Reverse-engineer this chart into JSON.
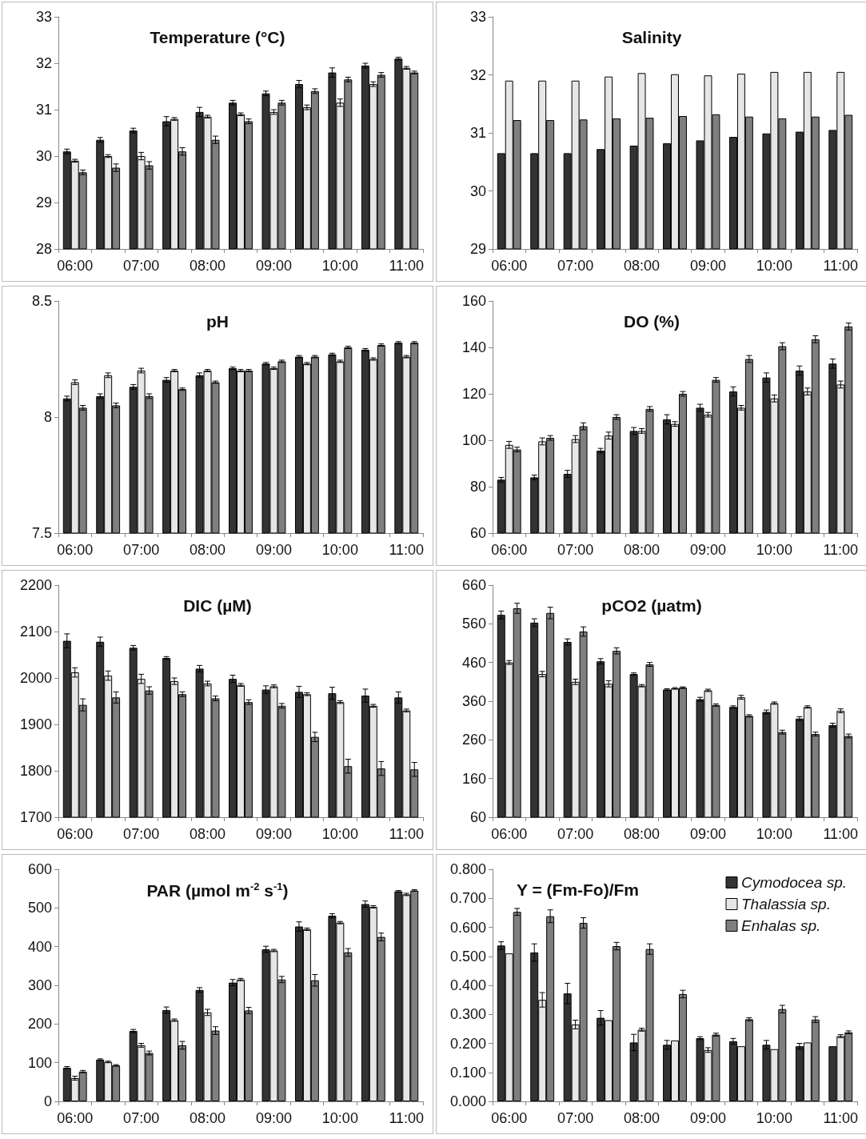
{
  "chart_data": [
    {
      "type": "bar",
      "title": "Temperature (°C)",
      "categories": [
        "06:00",
        null,
        "07:00",
        null,
        "08:00",
        null,
        "09:00",
        null,
        "10:00",
        null,
        "11:00"
      ],
      "ylim": [
        28,
        33
      ],
      "yticks": [
        28,
        29,
        30,
        31,
        32,
        33
      ],
      "series": [
        {
          "color": "#333333",
          "values": [
            30.1,
            30.35,
            30.55,
            30.75,
            30.95,
            31.15,
            31.35,
            31.55,
            31.8,
            31.95,
            32.1
          ],
          "errors": [
            0.05,
            0.05,
            0.05,
            0.1,
            0.1,
            0.05,
            0.05,
            0.08,
            0.1,
            0.05,
            0.03
          ]
        },
        {
          "color": "#e6e6e6",
          "values": [
            29.9,
            30.0,
            30.0,
            30.8,
            30.85,
            30.9,
            30.95,
            31.05,
            31.15,
            31.55,
            31.9
          ],
          "errors": [
            0.03,
            0.03,
            0.08,
            0.03,
            0.03,
            0.03,
            0.05,
            0.05,
            0.08,
            0.05,
            0.03
          ]
        },
        {
          "color": "#7f7f7f",
          "values": [
            29.65,
            29.75,
            29.8,
            30.1,
            30.35,
            30.75,
            31.15,
            31.4,
            31.65,
            31.75,
            31.8
          ],
          "errors": [
            0.05,
            0.08,
            0.08,
            0.08,
            0.08,
            0.05,
            0.05,
            0.05,
            0.05,
            0.05,
            0.03
          ]
        }
      ]
    },
    {
      "type": "bar",
      "title": "Salinity",
      "categories": [
        "06:00",
        null,
        "07:00",
        null,
        "08:00",
        null,
        "09:00",
        null,
        "10:00",
        null,
        "11:00"
      ],
      "ylim": [
        29,
        33
      ],
      "yticks": [
        29,
        30,
        31,
        32,
        33
      ],
      "series": [
        {
          "color": "#333333",
          "values": [
            30.65,
            30.65,
            30.65,
            30.72,
            30.78,
            30.82,
            30.87,
            30.93,
            30.99,
            31.02,
            31.05
          ]
        },
        {
          "color": "#e6e6e6",
          "values": [
            31.9,
            31.9,
            31.9,
            31.97,
            32.03,
            32.01,
            31.99,
            32.02,
            32.05,
            32.05,
            32.05
          ]
        },
        {
          "color": "#7f7f7f",
          "values": [
            31.22,
            31.22,
            31.23,
            31.25,
            31.26,
            31.29,
            31.32,
            31.28,
            31.25,
            31.28,
            31.31
          ]
        }
      ]
    },
    {
      "type": "bar",
      "title": "pH",
      "categories": [
        "06:00",
        null,
        "07:00",
        null,
        "08:00",
        null,
        "09:00",
        null,
        "10:00",
        null,
        "11:00"
      ],
      "ylim": [
        7.5,
        8.5
      ],
      "yticks": [
        7.5,
        8,
        8.5
      ],
      "series": [
        {
          "color": "#333333",
          "values": [
            8.08,
            8.09,
            8.13,
            8.16,
            8.18,
            8.21,
            8.23,
            8.26,
            8.27,
            8.29,
            8.32
          ],
          "errors": [
            0.01,
            0.01,
            0.01,
            0.01,
            0.01,
            0.005,
            0.005,
            0.005,
            0.005,
            0.005,
            0.005
          ]
        },
        {
          "color": "#e6e6e6",
          "values": [
            8.15,
            8.18,
            8.2,
            8.2,
            8.2,
            8.2,
            8.21,
            8.23,
            8.24,
            8.25,
            8.26
          ],
          "errors": [
            0.01,
            0.01,
            0.01,
            0.005,
            0.005,
            0.005,
            0.005,
            0.005,
            0.005,
            0.005,
            0.005
          ]
        },
        {
          "color": "#7f7f7f",
          "values": [
            8.04,
            8.05,
            8.09,
            8.12,
            8.15,
            8.2,
            8.24,
            8.26,
            8.3,
            8.31,
            8.32
          ],
          "errors": [
            0.01,
            0.01,
            0.01,
            0.005,
            0.005,
            0.005,
            0.005,
            0.005,
            0.005,
            0.005,
            0.005
          ]
        }
      ]
    },
    {
      "type": "bar",
      "title": "DO (%)",
      "categories": [
        "06:00",
        null,
        "07:00",
        null,
        "08:00",
        null,
        "09:00",
        null,
        "10:00",
        null,
        "11:00"
      ],
      "ylim": [
        60,
        160
      ],
      "yticks": [
        60,
        80,
        100,
        120,
        140,
        160
      ],
      "series": [
        {
          "color": "#333333",
          "values": [
            83,
            84,
            85.5,
            95.5,
            104,
            109,
            114,
            121,
            127,
            130,
            133
          ],
          "errors": [
            1,
            1,
            1.5,
            1,
            1.5,
            2,
            1.5,
            2,
            2,
            2,
            2
          ]
        },
        {
          "color": "#e6e6e6",
          "values": [
            98,
            99.5,
            100.5,
            102,
            104,
            107,
            111,
            114,
            118,
            121,
            124
          ],
          "errors": [
            1.5,
            1.5,
            1.5,
            1.5,
            1,
            1,
            1,
            1,
            1.5,
            1.5,
            1.5
          ]
        },
        {
          "color": "#7f7f7f",
          "values": [
            96,
            101,
            106,
            110,
            113.5,
            120,
            126,
            135,
            140.5,
            143.5,
            149
          ],
          "errors": [
            1,
            1,
            1.5,
            1,
            1,
            1,
            1,
            1.5,
            1.5,
            1.5,
            1.5
          ]
        }
      ]
    },
    {
      "type": "bar",
      "title": "DIC (µM)",
      "categories": [
        "06:00",
        null,
        "07:00",
        null,
        "08:00",
        null,
        "09:00",
        null,
        "10:00",
        null,
        "11:00"
      ],
      "ylim": [
        1700,
        2200
      ],
      "yticks": [
        1700,
        1800,
        1900,
        2000,
        2100,
        2200
      ],
      "series": [
        {
          "color": "#333333",
          "values": [
            2080,
            2078,
            2065,
            2043,
            2020,
            1998,
            1975,
            1970,
            1967,
            1962,
            1958
          ],
          "errors": [
            15,
            10,
            5,
            3,
            7,
            8,
            8,
            12,
            13,
            14,
            12
          ]
        },
        {
          "color": "#e6e6e6",
          "values": [
            2012,
            2005,
            1998,
            1993,
            1988,
            1985,
            1982,
            1965,
            1948,
            1940,
            1930
          ],
          "errors": [
            10,
            10,
            10,
            7,
            5,
            3,
            3,
            3,
            3,
            3,
            3
          ]
        },
        {
          "color": "#7f7f7f",
          "values": [
            1942,
            1958,
            1973,
            1965,
            1956,
            1948,
            1940,
            1873,
            1810,
            1805,
            1803
          ],
          "errors": [
            13,
            12,
            8,
            5,
            5,
            5,
            5,
            10,
            15,
            15,
            15
          ]
        }
      ]
    },
    {
      "type": "bar",
      "title": "pCO2 (µatm)",
      "categories": [
        "06:00",
        null,
        "07:00",
        null,
        "08:00",
        null,
        "09:00",
        null,
        "10:00",
        null,
        "11:00"
      ],
      "ylim": [
        60,
        660
      ],
      "yticks": [
        60,
        160,
        260,
        360,
        460,
        560,
        660
      ],
      "series": [
        {
          "color": "#333333",
          "values": [
            583,
            563,
            513,
            463,
            430,
            390,
            365,
            345,
            332,
            315,
            298
          ],
          "errors": [
            10,
            10,
            8,
            7,
            3,
            2,
            5,
            3,
            5,
            5,
            5
          ]
        },
        {
          "color": "#e6e6e6",
          "values": [
            460,
            430,
            410,
            405,
            400,
            393,
            388,
            370,
            355,
            345,
            335
          ],
          "errors": [
            5,
            7,
            7,
            8,
            3,
            2,
            3,
            5,
            3,
            3,
            5
          ]
        },
        {
          "color": "#7f7f7f",
          "values": [
            600,
            588,
            540,
            490,
            455,
            395,
            350,
            322,
            280,
            275,
            270
          ],
          "errors": [
            13,
            15,
            12,
            8,
            5,
            2,
            3,
            3,
            5,
            5,
            5
          ]
        }
      ]
    },
    {
      "type": "bar",
      "title": "PAR (µmol m$^{-2}$ s$^{-1}$)",
      "categories": [
        "06:00",
        null,
        "07:00",
        null,
        "08:00",
        null,
        "09:00",
        null,
        "10:00",
        null,
        "11:00"
      ],
      "ylim": [
        0,
        600
      ],
      "yticks": [
        0,
        100,
        200,
        300,
        400,
        500,
        600
      ],
      "series": [
        {
          "color": "#333333",
          "values": [
            87,
            108,
            182,
            236,
            288,
            307,
            393,
            452,
            480,
            510,
            543
          ],
          "errors": [
            3,
            2,
            4,
            8,
            6,
            8,
            8,
            12,
            5,
            8,
            2
          ]
        },
        {
          "color": "#e6e6e6",
          "values": [
            60,
            102,
            145,
            210,
            230,
            315,
            390,
            445,
            462,
            503,
            535
          ],
          "errors": [
            5,
            2,
            5,
            3,
            8,
            3,
            3,
            3,
            3,
            3,
            3
          ]
        },
        {
          "color": "#7f7f7f",
          "values": [
            77,
            93,
            125,
            145,
            183,
            235,
            315,
            313,
            385,
            425,
            545
          ],
          "errors": [
            3,
            2,
            5,
            10,
            10,
            8,
            8,
            15,
            10,
            10,
            2
          ]
        }
      ]
    },
    {
      "type": "bar",
      "title": "Y = (Fm-Fo)/Fm",
      "categories": [
        "06:00",
        null,
        "07:00",
        null,
        "08:00",
        null,
        "09:00",
        null,
        "10:00",
        null,
        "11:00"
      ],
      "ylim": [
        0,
        0.8
      ],
      "yticks": [
        {
          "value": 0,
          "label": "0.000"
        },
        {
          "value": 0.1,
          "label": "0.100"
        },
        {
          "value": 0.2,
          "label": "0.200"
        },
        {
          "value": 0.3,
          "label": "0.300"
        },
        {
          "value": 0.4,
          "label": "0.400"
        },
        {
          "value": 0.5,
          "label": "0.500"
        },
        {
          "value": 0.6,
          "label": "0.600"
        },
        {
          "value": 0.7,
          "label": "0.700"
        },
        {
          "value": 0.8,
          "label": "0.800"
        }
      ],
      "legend": "top right",
      "series": [
        {
          "name": "Cymodocea sp.",
          "color": "#333333",
          "values": [
            0.537,
            0.513,
            0.372,
            0.288,
            0.203,
            0.195,
            0.218,
            0.207,
            0.195,
            0.19,
            0.19
          ],
          "errors": [
            0.013,
            0.03,
            0.035,
            0.025,
            0.028,
            0.015,
            0.005,
            0.01,
            0.015,
            0.01,
            null
          ]
        },
        {
          "name": "Thalassia sp.",
          "color": "#e6e6e6",
          "values": [
            0.51,
            0.35,
            0.265,
            0.28,
            0.247,
            0.21,
            0.177,
            0.19,
            0.18,
            0.203,
            0.225
          ],
          "errors": [
            null,
            0.025,
            0.015,
            null,
            0.005,
            null,
            0.008,
            null,
            null,
            null,
            0.005
          ]
        },
        {
          "name": "Enhalas sp.",
          "color": "#7f7f7f",
          "values": [
            0.653,
            0.638,
            0.615,
            0.535,
            0.525,
            0.37,
            0.23,
            0.283,
            0.318,
            0.282,
            0.238
          ],
          "errors": [
            0.012,
            0.022,
            0.018,
            0.013,
            0.018,
            0.013,
            0.005,
            0.005,
            0.013,
            0.01,
            0.005
          ]
        }
      ]
    }
  ]
}
